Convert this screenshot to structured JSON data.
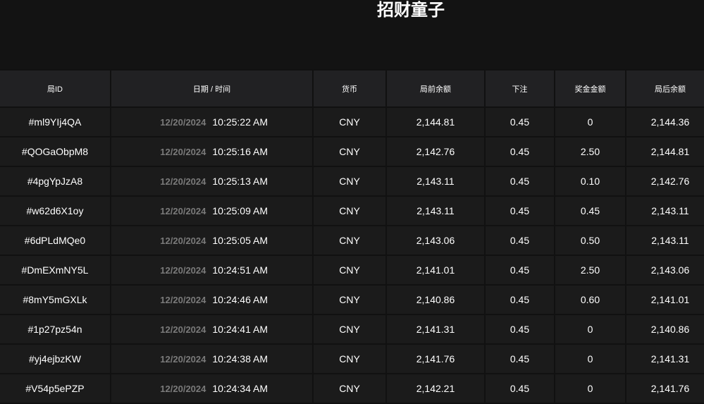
{
  "header": {
    "title": "招财童子"
  },
  "table": {
    "columns": [
      "局ID",
      "日期 / 时间",
      "货币",
      "局前余额",
      "下注",
      "奖金金额",
      "局后余额"
    ],
    "rows": [
      {
        "id": "#ml9YIj4QA",
        "date": "12/20/2024",
        "time": "10:25:22 AM",
        "currency": "CNY",
        "before": "2,144.81",
        "bet": "0.45",
        "win": "0",
        "after": "2,144.36"
      },
      {
        "id": "#QOGaObpM8",
        "date": "12/20/2024",
        "time": "10:25:16 AM",
        "currency": "CNY",
        "before": "2,142.76",
        "bet": "0.45",
        "win": "2.50",
        "after": "2,144.81"
      },
      {
        "id": "#4pgYpJzA8",
        "date": "12/20/2024",
        "time": "10:25:13 AM",
        "currency": "CNY",
        "before": "2,143.11",
        "bet": "0.45",
        "win": "0.10",
        "after": "2,142.76"
      },
      {
        "id": "#w62d6X1oy",
        "date": "12/20/2024",
        "time": "10:25:09 AM",
        "currency": "CNY",
        "before": "2,143.11",
        "bet": "0.45",
        "win": "0.45",
        "after": "2,143.11"
      },
      {
        "id": "#6dPLdMQe0",
        "date": "12/20/2024",
        "time": "10:25:05 AM",
        "currency": "CNY",
        "before": "2,143.06",
        "bet": "0.45",
        "win": "0.50",
        "after": "2,143.11"
      },
      {
        "id": "#DmEXmNY5L",
        "date": "12/20/2024",
        "time": "10:24:51 AM",
        "currency": "CNY",
        "before": "2,141.01",
        "bet": "0.45",
        "win": "2.50",
        "after": "2,143.06"
      },
      {
        "id": "#8mY5mGXLk",
        "date": "12/20/2024",
        "time": "10:24:46 AM",
        "currency": "CNY",
        "before": "2,140.86",
        "bet": "0.45",
        "win": "0.60",
        "after": "2,141.01"
      },
      {
        "id": "#1p27pz54n",
        "date": "12/20/2024",
        "time": "10:24:41 AM",
        "currency": "CNY",
        "before": "2,141.31",
        "bet": "0.45",
        "win": "0",
        "after": "2,140.86"
      },
      {
        "id": "#yj4ejbzKW",
        "date": "12/20/2024",
        "time": "10:24:38 AM",
        "currency": "CNY",
        "before": "2,141.76",
        "bet": "0.45",
        "win": "0",
        "after": "2,141.31"
      },
      {
        "id": "#V54p5ePZP",
        "date": "12/20/2024",
        "time": "10:24:34 AM",
        "currency": "CNY",
        "before": "2,142.21",
        "bet": "0.45",
        "win": "0",
        "after": "2,141.76"
      }
    ]
  }
}
